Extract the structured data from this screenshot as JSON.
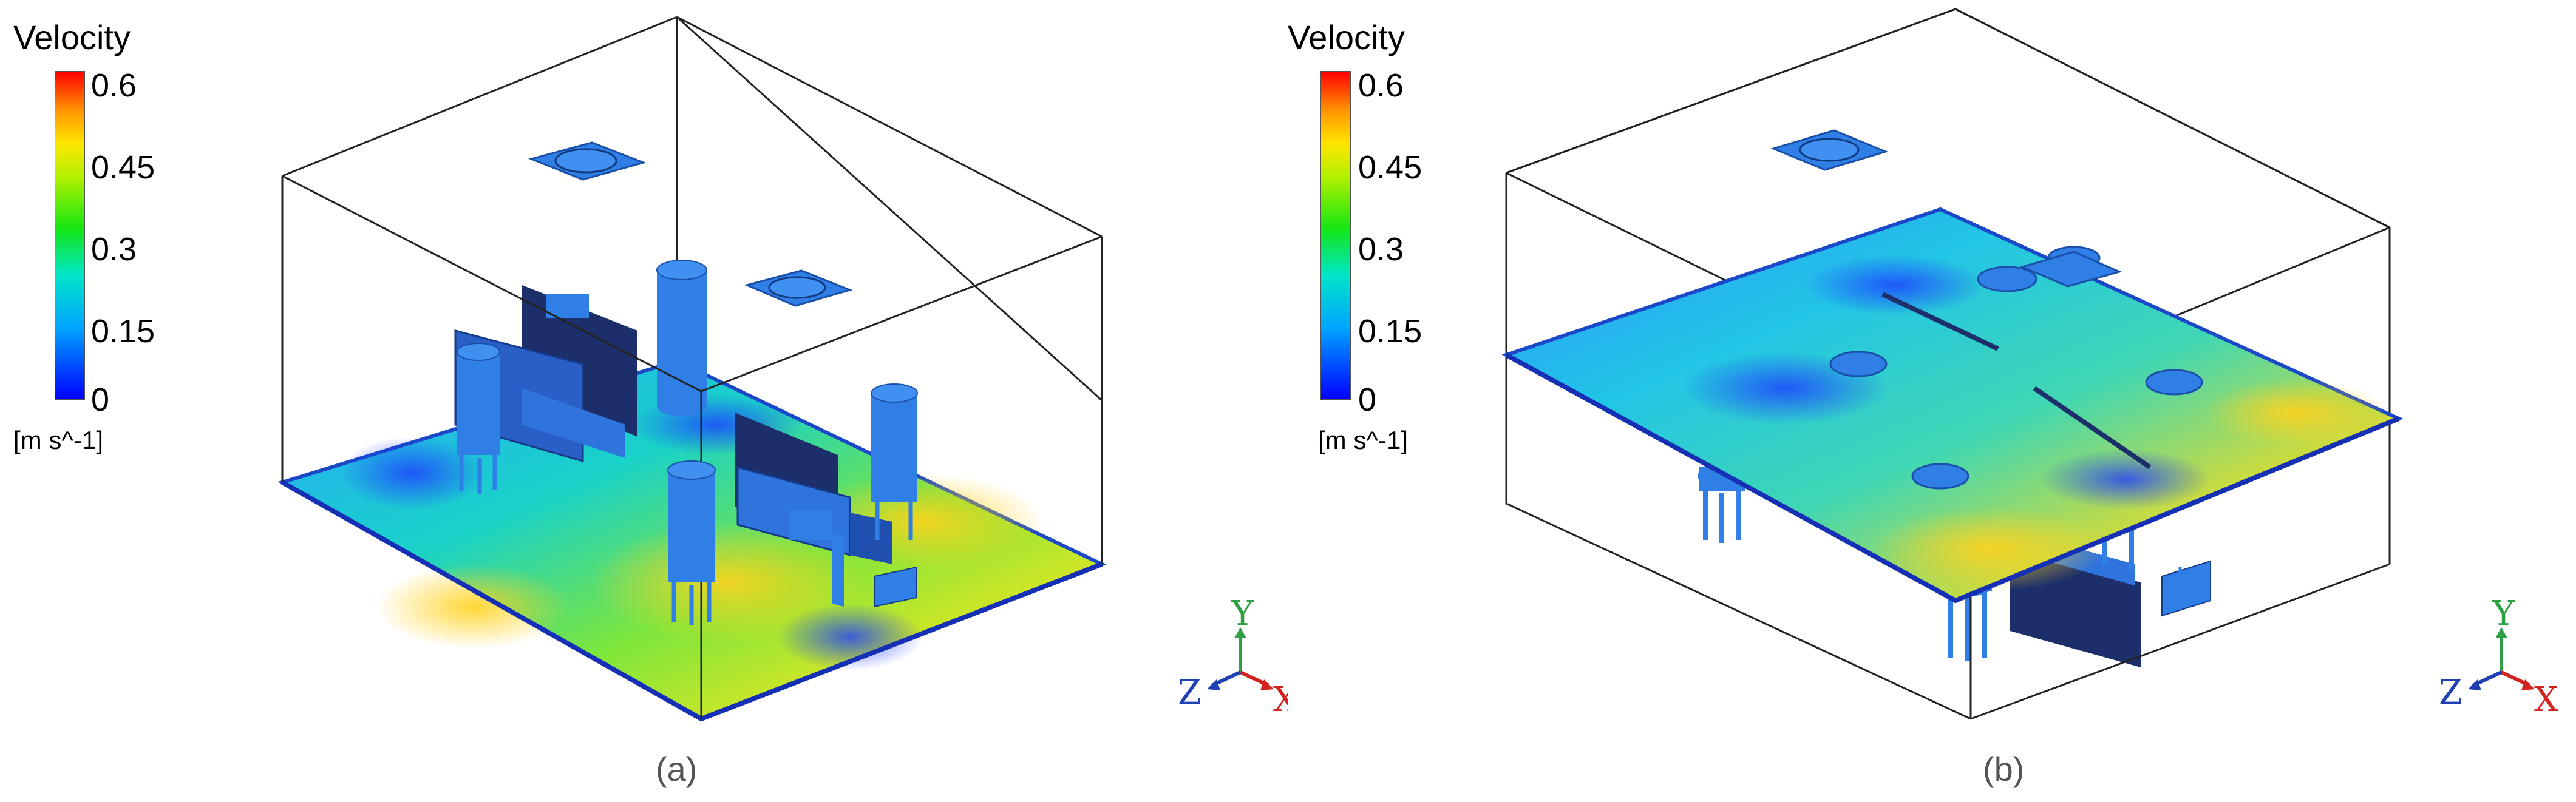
{
  "legend": {
    "title": "Velocity",
    "ticks": [
      "0.6",
      "0.45",
      "0.3",
      "0.15",
      "0"
    ],
    "unit": "[m s^-1]"
  },
  "panels": [
    {
      "caption": "(a)"
    },
    {
      "caption": "(b)"
    }
  ],
  "axes": {
    "x": "X",
    "y": "Y",
    "z": "Z"
  },
  "colors": {
    "accent_blue": "#2f7fe6",
    "x_axis": "#d2231f",
    "y_axis": "#2ea043",
    "z_axis": "#1f3fb4"
  }
}
